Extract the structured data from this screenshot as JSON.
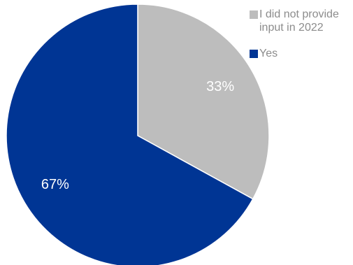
{
  "chart_data": {
    "type": "pie",
    "title": "",
    "categories": [
      "I did not provide input in 2022",
      "Yes"
    ],
    "values": [
      33,
      67
    ],
    "labels": [
      "33%",
      "67%"
    ],
    "colors": [
      "#bdbdbd",
      "#003594"
    ],
    "start_angle_deg": 0,
    "direction": "clockwise",
    "legend_position": "top-right",
    "legend": [
      {
        "name": "I did not provide input in 2022",
        "color": "#bdbdbd"
      },
      {
        "name": "Yes",
        "color": "#003594"
      }
    ]
  }
}
